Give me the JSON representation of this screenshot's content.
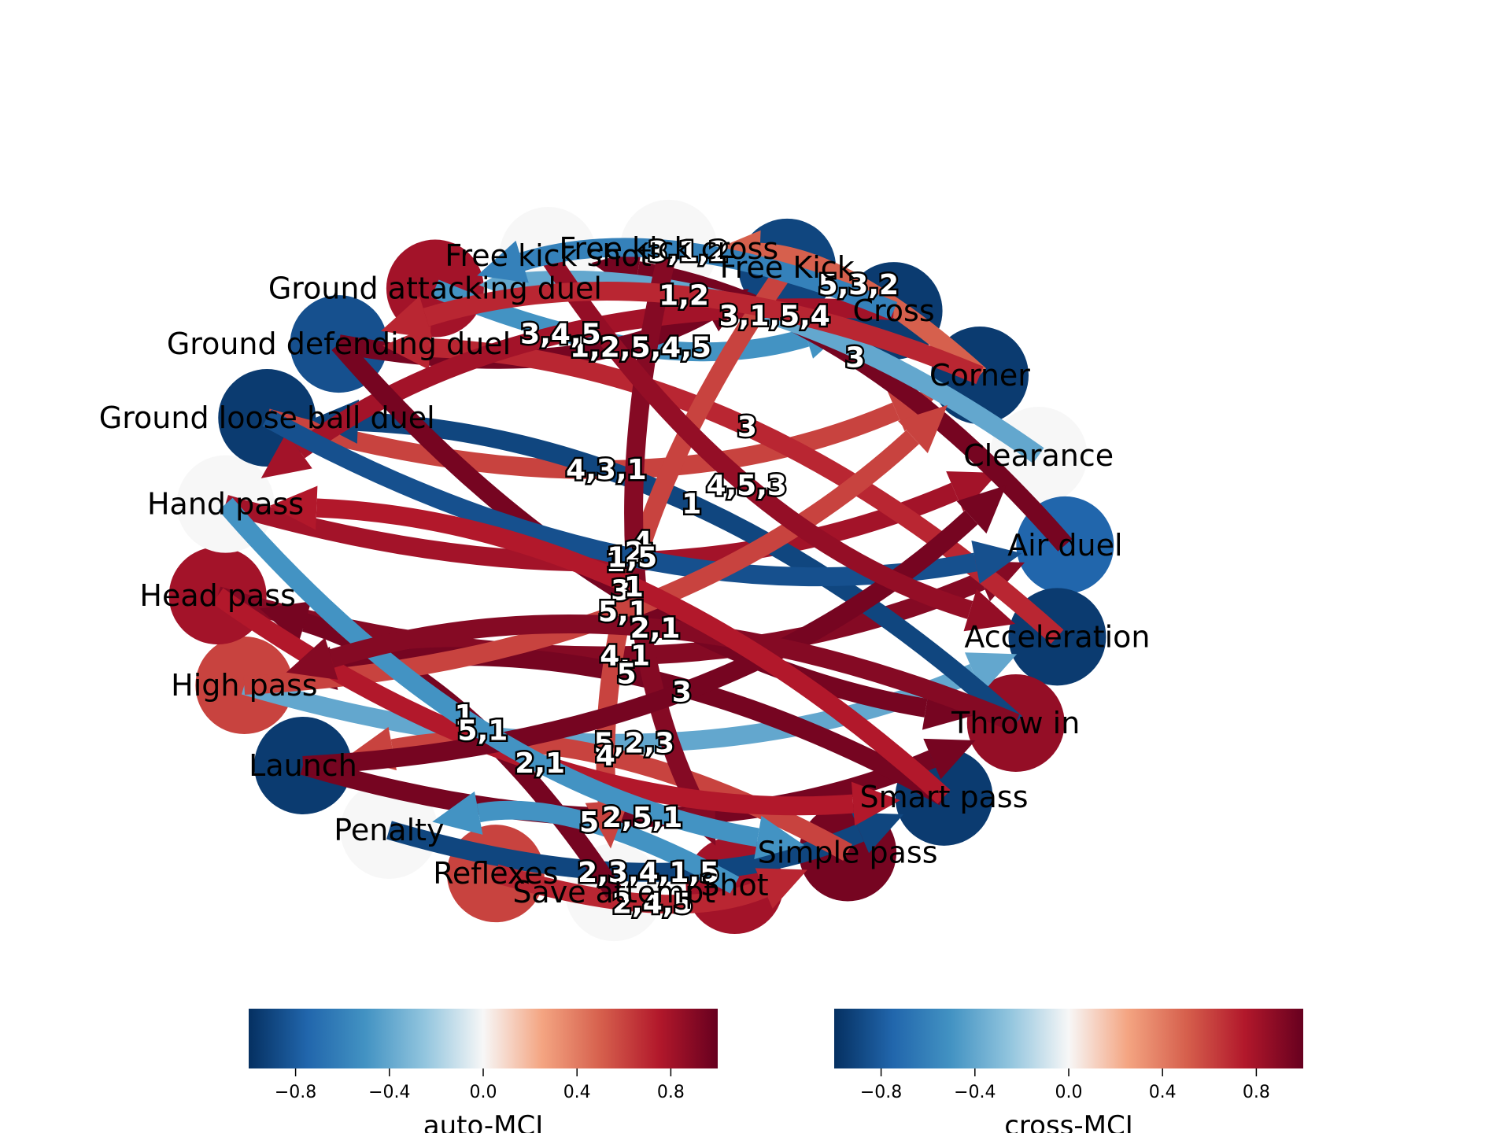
{
  "figure": {
    "nodes": [
      {
        "label": "Free Kick",
        "auto_mci": -0.9
      },
      {
        "label": "Cross",
        "auto_mci": -0.95
      },
      {
        "label": "Corner",
        "auto_mci": -0.95
      },
      {
        "label": "Clearance",
        "auto_mci": 0.0
      },
      {
        "label": "Air duel",
        "auto_mci": -0.75
      },
      {
        "label": "Acceleration",
        "auto_mci": -0.95
      },
      {
        "label": "Throw in",
        "auto_mci": 0.85
      },
      {
        "label": "Smart pass",
        "auto_mci": -0.95
      },
      {
        "label": "Simple pass",
        "auto_mci": 0.95
      },
      {
        "label": "Shot",
        "auto_mci": 0.8
      },
      {
        "label": "Save attempt",
        "auto_mci": 0.0
      },
      {
        "label": "Reflexes",
        "auto_mci": 0.6
      },
      {
        "label": "Penalty",
        "auto_mci": 0.0
      },
      {
        "label": "Launch",
        "auto_mci": -0.95
      },
      {
        "label": "High pass",
        "auto_mci": 0.6
      },
      {
        "label": "Head pass",
        "auto_mci": 0.8
      },
      {
        "label": "Hand pass",
        "auto_mci": 0.0
      },
      {
        "label": "Ground loose ball duel",
        "auto_mci": -0.95
      },
      {
        "label": "Ground defending duel",
        "auto_mci": -0.85
      },
      {
        "label": "Ground attacking duel",
        "auto_mci": 0.8
      },
      {
        "label": "Free kick shot",
        "auto_mci": 0.0
      },
      {
        "label": "Free kick cross",
        "auto_mci": 0.0
      }
    ],
    "edges": [
      {
        "source": "Ground attacking duel",
        "target": "Cross",
        "cross_mci": -0.5,
        "label": "1,2,5,4,5"
      },
      {
        "source": "Ground defending duel",
        "target": "Free Kick",
        "cross_mci": 0.95,
        "label": ""
      },
      {
        "source": "Ground loose ball duel",
        "target": "Corner",
        "cross_mci": 0.6,
        "label": "4,3,1"
      },
      {
        "source": "Hand pass",
        "target": "Clearance",
        "cross_mci": 0.8,
        "label": "1"
      },
      {
        "source": "Head pass",
        "target": "Air duel",
        "cross_mci": 0.9,
        "label": "4,1"
      },
      {
        "source": "High pass",
        "target": "Acceleration",
        "cross_mci": -0.4,
        "label": "5,2,3"
      },
      {
        "source": "Launch",
        "target": "Throw in",
        "cross_mci": 0.95,
        "label": "2,5,1"
      },
      {
        "source": "Penalty",
        "target": "Smart pass",
        "cross_mci": -0.9,
        "label": "2,3,4,1,5"
      },
      {
        "source": "Reflexes",
        "target": "Simple pass",
        "cross_mci": 0.7,
        "label": "2,4,5"
      },
      {
        "source": "Save attempt",
        "target": "Head pass",
        "cross_mci": 0.95,
        "label": "1"
      },
      {
        "source": "Shot",
        "target": "Penalty",
        "cross_mci": -0.5,
        "label": "5"
      },
      {
        "source": "Simple pass",
        "target": "Launch",
        "cross_mci": 0.6,
        "label": "4"
      },
      {
        "source": "Smart pass",
        "target": "High pass",
        "cross_mci": 0.95,
        "label": "5"
      },
      {
        "source": "Throw in",
        "target": "Ground loose ball duel",
        "cross_mci": -0.9,
        "label": "1"
      },
      {
        "source": "Acceleration",
        "target": "Ground defending duel",
        "cross_mci": 0.7,
        "label": "3"
      },
      {
        "source": "Air duel",
        "target": "Free kick shot",
        "cross_mci": 0.95,
        "label": "3"
      },
      {
        "source": "Clearance",
        "target": "Ground attacking duel",
        "cross_mci": -0.4,
        "label": "3,1,5,4"
      },
      {
        "source": "Corner",
        "target": "Free kick cross",
        "cross_mci": 0.5,
        "label": "5,3,2"
      },
      {
        "source": "Cross",
        "target": "Hand pass",
        "cross_mci": 0.8,
        "label": "3,4,5"
      },
      {
        "source": "Free Kick",
        "target": "Save attempt",
        "cross_mci": 0.6,
        "label": "4"
      },
      {
        "source": "Free kick cross",
        "target": "Shot",
        "cross_mci": 0.9,
        "label": "2"
      },
      {
        "source": "Ground defending duel",
        "target": "Throw in",
        "cross_mci": 0.95,
        "label": "3"
      },
      {
        "source": "Ground loose ball duel",
        "target": "Air duel",
        "cross_mci": -0.85,
        "label": "1,5"
      },
      {
        "source": "High pass",
        "target": "Corner",
        "cross_mci": 0.6,
        "label": "5,1"
      },
      {
        "source": "Head pass",
        "target": "Smart pass",
        "cross_mci": 0.75,
        "label": "2,1"
      },
      {
        "source": "Launch",
        "target": "Clearance",
        "cross_mci": 0.95,
        "label": "3"
      },
      {
        "source": "Hand pass",
        "target": "Simple pass",
        "cross_mci": -0.5,
        "label": "5,1"
      },
      {
        "source": "Free kick shot",
        "target": "Acceleration",
        "cross_mci": 0.85,
        "label": "4,5,3"
      },
      {
        "source": "Cross",
        "target": "Ground attacking duel",
        "cross_mci": -0.6,
        "label": "3,1,2"
      },
      {
        "source": "Corner",
        "target": "Ground defending duel",
        "cross_mci": 0.7,
        "label": "1,2"
      },
      {
        "source": "Throw in",
        "target": "High pass",
        "cross_mci": 0.9,
        "label": "2,1"
      },
      {
        "source": "Smart pass",
        "target": "Hand pass",
        "cross_mci": 0.75,
        "label": "1"
      }
    ],
    "colorbars": [
      {
        "title": "auto-MCI",
        "ticks": [
          "−0.8",
          "−0.4",
          "0.0",
          "0.4",
          "0.8"
        ],
        "range": [
          -1,
          1
        ]
      },
      {
        "title": "cross-MCI",
        "ticks": [
          "−0.8",
          "−0.4",
          "0.0",
          "0.4",
          "0.8"
        ],
        "range": [
          -1,
          1
        ]
      }
    ],
    "colormap": "RdBu_r"
  }
}
